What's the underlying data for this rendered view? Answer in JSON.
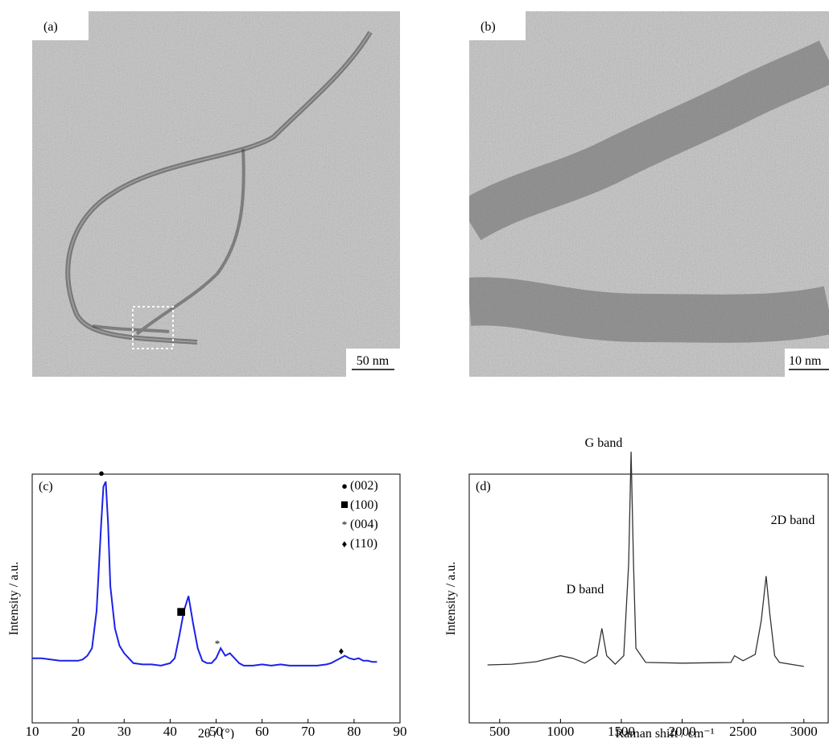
{
  "images": [
    {
      "label": "(a)",
      "scale_bar": "50 nm"
    },
    {
      "label": "(b)",
      "scale_bar": "10 nm"
    }
  ],
  "chart_data": [
    {
      "type": "line",
      "panel": "(c)",
      "x_label": "2θ / (°)",
      "y_label": "Intensity / a.u.",
      "color": "#1c22e6",
      "xlim": [
        10,
        90
      ],
      "xticks": [
        10,
        20,
        30,
        40,
        50,
        60,
        70,
        80,
        90
      ],
      "ylim": [
        0,
        100
      ],
      "x": [
        10,
        12,
        14,
        16,
        18,
        20,
        21,
        22,
        23,
        24,
        25,
        25.5,
        26,
        26.5,
        27,
        28,
        29,
        30,
        32,
        34,
        36,
        38,
        40,
        41,
        42,
        43,
        44,
        45,
        46,
        47,
        48,
        49,
        50,
        51,
        52,
        53,
        54,
        55,
        56,
        58,
        60,
        62,
        64,
        66,
        68,
        70,
        72,
        74,
        75,
        76,
        77,
        78,
        79,
        80,
        81,
        82,
        83,
        84,
        85
      ],
      "values": [
        26,
        26,
        25.5,
        25,
        25,
        25,
        25.5,
        27,
        30,
        45,
        80,
        95,
        97,
        80,
        55,
        38,
        31,
        28,
        24,
        23.5,
        23.5,
        23,
        24,
        26,
        35,
        45,
        51,
        40,
        30,
        25,
        24,
        24,
        26,
        30,
        27,
        28,
        26,
        24,
        23,
        23,
        23.5,
        23,
        23.5,
        23,
        23,
        23,
        23,
        23.5,
        24,
        25,
        26,
        27,
        26,
        25.5,
        26,
        25,
        25,
        24.5,
        24.5
      ],
      "peaks": [
        {
          "symbol": "●",
          "label": "(002)"
        },
        {
          "symbol": "■",
          "label": "(100)"
        },
        {
          "symbol": "*",
          "label": "(004)"
        },
        {
          "symbol": "♦",
          "label": "(110)"
        }
      ]
    },
    {
      "type": "line",
      "panel": "(d)",
      "x_label": "Raman shift / cm⁻¹",
      "y_label": "Intensity / a.u.",
      "color": "#333333",
      "xlim": [
        250,
        3200
      ],
      "xticks": [
        500,
        1000,
        1500,
        2000,
        2500,
        3000
      ],
      "ylim": [
        0,
        100
      ],
      "x": [
        400,
        600,
        800,
        1000,
        1100,
        1200,
        1300,
        1340,
        1380,
        1450,
        1520,
        1560,
        1580,
        1600,
        1620,
        1700,
        2000,
        2400,
        2430,
        2500,
        2600,
        2650,
        2690,
        2720,
        2760,
        2800,
        3000
      ],
      "values": [
        23.3,
        23.6,
        24.6,
        27,
        26,
        24,
        27,
        38,
        27,
        23.6,
        27,
        64,
        109,
        64,
        30,
        24.3,
        24,
        24.3,
        27,
        25,
        27.5,
        41,
        59,
        44,
        27,
        24.3,
        22.7
      ],
      "annotations": [
        "G band",
        "D band",
        "2D band"
      ]
    }
  ]
}
